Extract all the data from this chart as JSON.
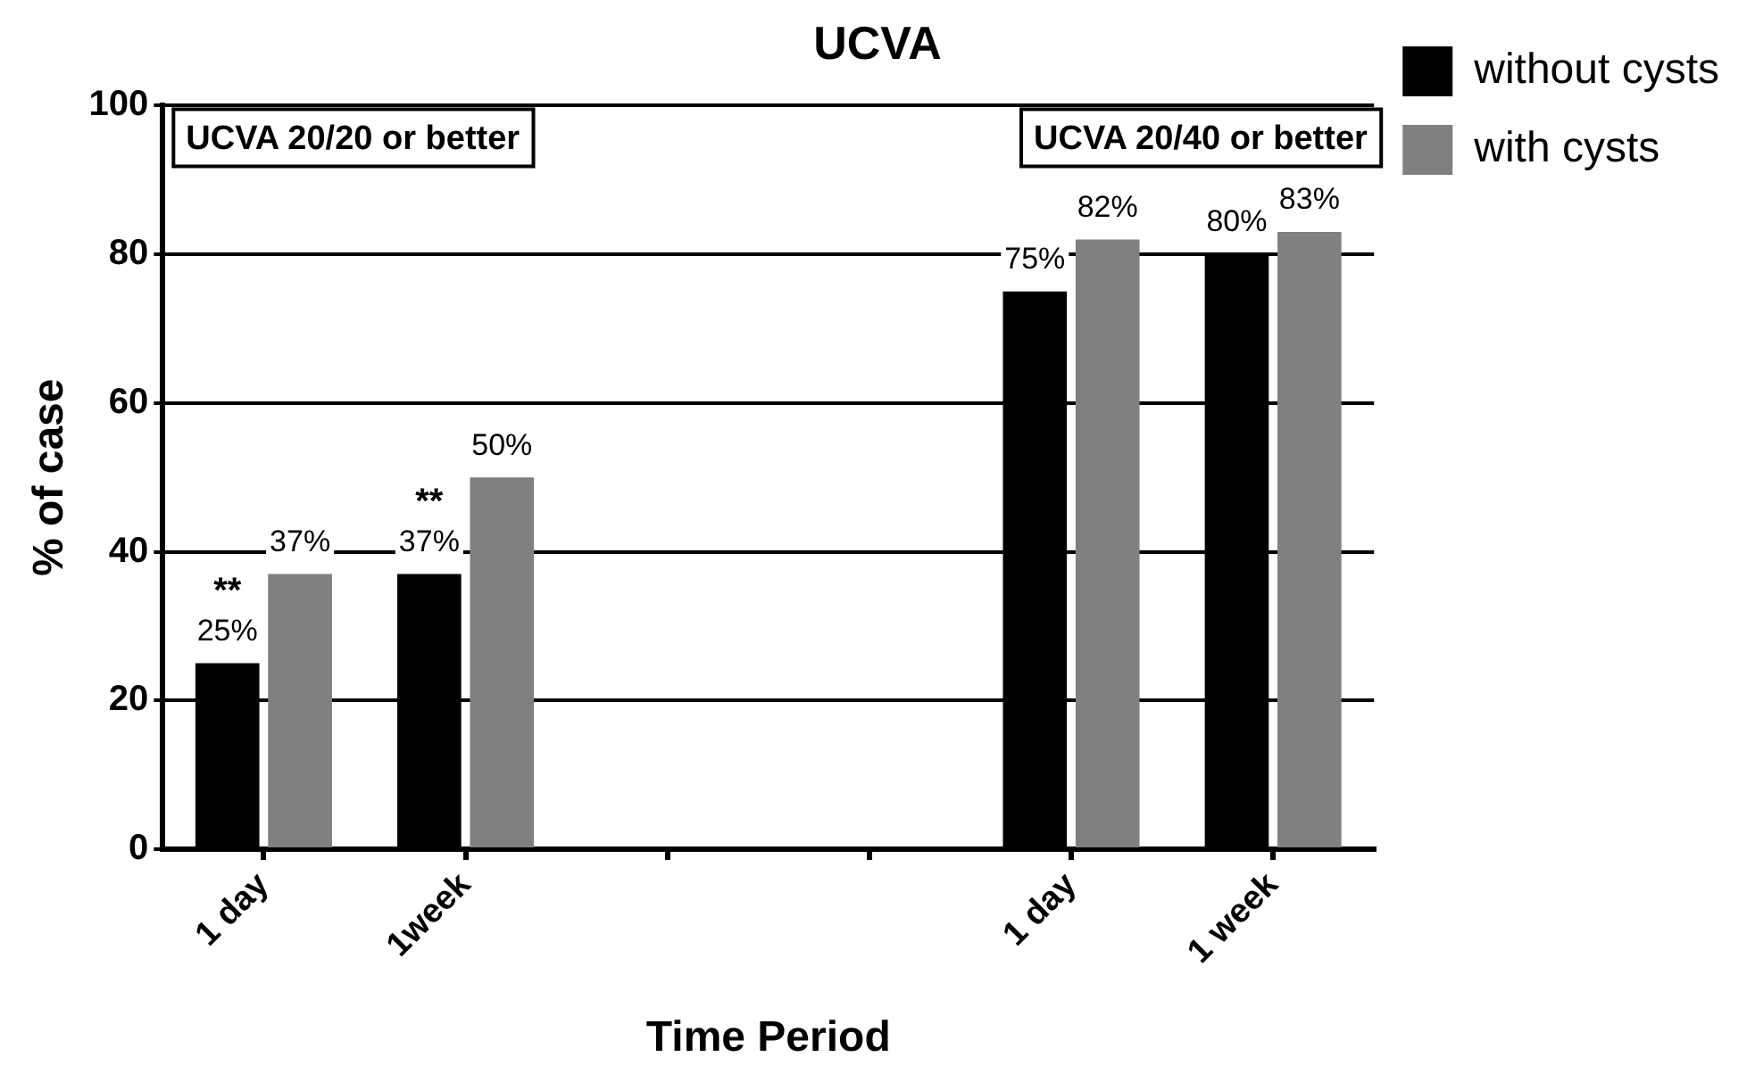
{
  "chart_data": {
    "type": "bar",
    "title": "UCVA",
    "xlabel": "Time Period",
    "ylabel": "% of case",
    "categories": [
      "1 day",
      "1week",
      null,
      null,
      "1 day",
      "1 week"
    ],
    "series": [
      {
        "name": "without cysts",
        "color": "#000000",
        "values": [
          25,
          37,
          null,
          null,
          75,
          80
        ],
        "value_labels": [
          "25%",
          "37%",
          null,
          null,
          "75%",
          "80%"
        ]
      },
      {
        "name": "with cysts",
        "color": "#808080",
        "values": [
          37,
          50,
          null,
          null,
          82,
          83
        ],
        "value_labels": [
          "37%",
          "50%",
          null,
          null,
          "82%",
          "83%"
        ]
      }
    ],
    "ylim": [
      0,
      100
    ],
    "yticks": [
      0,
      20,
      40,
      60,
      80,
      100
    ],
    "grid": "y",
    "legend": "top right",
    "annotations": [
      "UCVA 20/20 or better",
      "UCVA 20/40 or better",
      {
        "text": "**",
        "x": "1 day",
        "y": 25
      },
      {
        "text": "**",
        "x": "1week",
        "y": 37
      }
    ]
  }
}
